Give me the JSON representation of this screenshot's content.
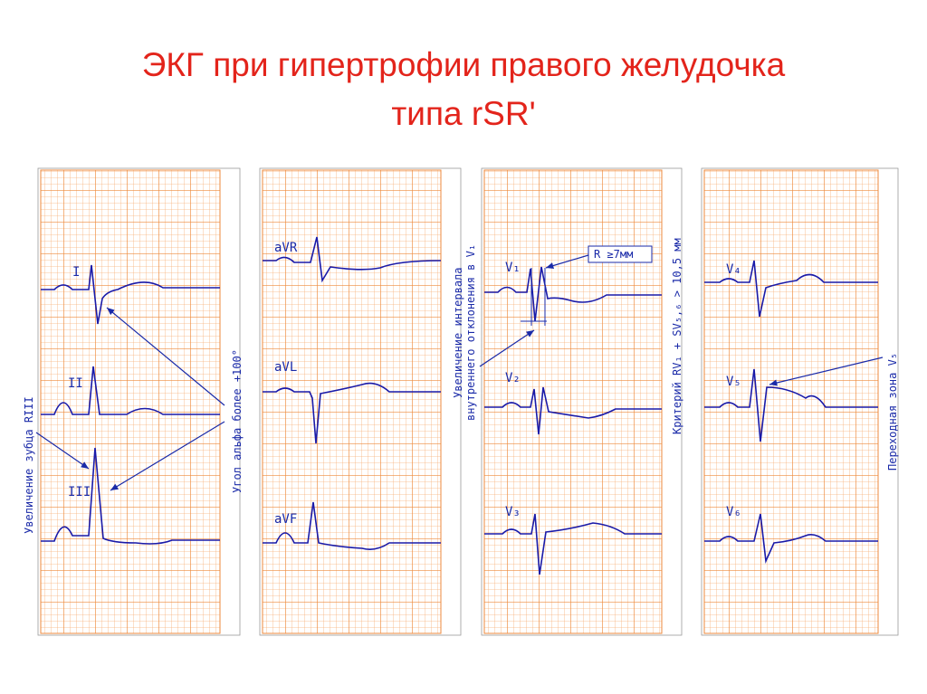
{
  "header": {
    "title_line1": "ЭКГ при гипертрофии правого желудочка",
    "title_line2": "типа rSR'"
  },
  "leads": {
    "I": "I",
    "II": "II",
    "III": "III",
    "aVR": "aVR",
    "aVL": "aVL",
    "aVF": "aVF",
    "V1": "V₁",
    "V2": "V₂",
    "V3": "V₃",
    "V4": "V₄",
    "V5": "V₅",
    "V6": "V₆"
  },
  "annotations": {
    "r_iii": "Увеличение зубца RIII",
    "alpha": "Угол альфа более +100°",
    "interval_line1": "Увеличение интервала",
    "interval_line2": "внутреннего отклонения в V₁",
    "r_7mm": "R ≥7мм",
    "criterion": "Критерий RV₁ + SV₅,₆ > 10,5 мм",
    "transition": "Переходная зона V₅"
  }
}
